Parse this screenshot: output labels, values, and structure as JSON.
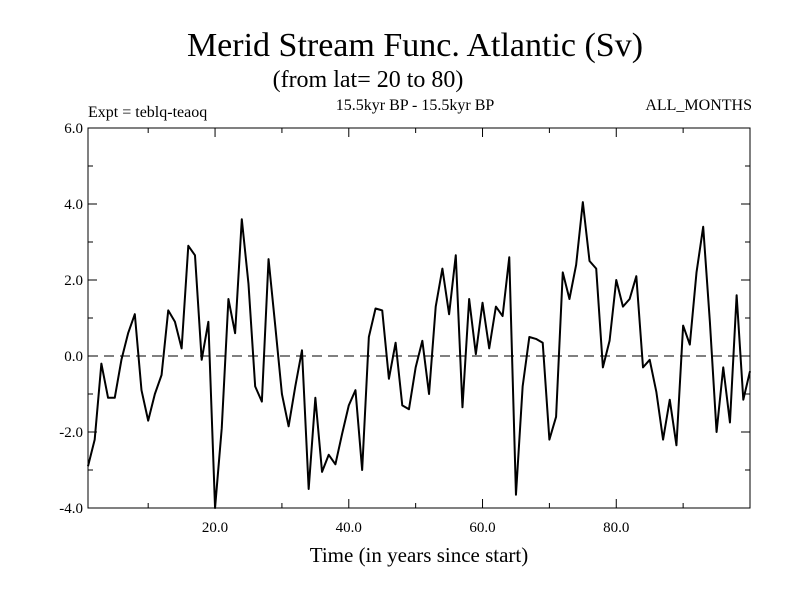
{
  "chart_data": {
    "type": "line",
    "title": "Merid Stream Func. Atlantic (Sv)",
    "subtitle": "(from lat= 20 to 80)",
    "period": "15.5kyr BP - 15.5kyr BP",
    "experiment": "Expt = teblq-teaoq",
    "months": "ALL_MONTHS",
    "xlabel": "Time (in years since start)",
    "ylabel": "",
    "xlim": [
      1,
      100
    ],
    "ylim": [
      -4.0,
      6.0
    ],
    "x_ticks": [
      20,
      40,
      60,
      80
    ],
    "x_tick_labels": [
      "20.0",
      "40.0",
      "60.0",
      "80.0"
    ],
    "y_ticks": [
      -4,
      -2,
      0,
      2,
      4,
      6
    ],
    "y_tick_labels": [
      "-4.0",
      "-2.0",
      "0.0",
      "2.0",
      "4.0",
      "6.0"
    ],
    "reference_line": 0.0,
    "x": [
      1,
      2,
      3,
      4,
      5,
      6,
      7,
      8,
      9,
      10,
      11,
      12,
      13,
      14,
      15,
      16,
      17,
      18,
      19,
      20,
      21,
      22,
      23,
      24,
      25,
      26,
      27,
      28,
      29,
      30,
      31,
      32,
      33,
      34,
      35,
      36,
      37,
      38,
      39,
      40,
      41,
      42,
      43,
      44,
      45,
      46,
      47,
      48,
      49,
      50,
      51,
      52,
      53,
      54,
      55,
      56,
      57,
      58,
      59,
      60,
      61,
      62,
      63,
      64,
      65,
      66,
      67,
      68,
      69,
      70,
      71,
      72,
      73,
      74,
      75,
      76,
      77,
      78,
      79,
      80,
      81,
      82,
      83,
      84,
      85,
      86,
      87,
      88,
      89,
      90,
      91,
      92,
      93,
      94,
      95,
      96,
      97,
      98,
      99,
      100
    ],
    "values": [
      -2.9,
      -2.2,
      -0.2,
      -1.1,
      -1.1,
      -0.1,
      0.6,
      1.1,
      -0.9,
      -1.7,
      -1.0,
      -0.5,
      1.2,
      0.9,
      0.2,
      2.9,
      2.65,
      -0.1,
      0.9,
      -4.0,
      -1.9,
      1.5,
      0.6,
      3.6,
      1.9,
      -0.8,
      -1.2,
      2.55,
      0.8,
      -1.0,
      -1.85,
      -0.8,
      0.15,
      -3.5,
      -1.1,
      -3.05,
      -2.6,
      -2.85,
      -2.05,
      -1.3,
      -0.9,
      -3.0,
      0.5,
      1.25,
      1.2,
      -0.6,
      0.35,
      -1.3,
      -1.4,
      -0.3,
      0.4,
      -1.0,
      1.3,
      2.3,
      1.1,
      2.65,
      -1.35,
      1.5,
      0.05,
      1.4,
      0.2,
      1.3,
      1.05,
      2.6,
      -3.65,
      -0.8,
      0.5,
      0.45,
      0.35,
      -2.2,
      -1.6,
      2.2,
      1.5,
      2.4,
      4.05,
      2.5,
      2.3,
      -0.3,
      0.4,
      2.0,
      1.3,
      1.5,
      2.1,
      -0.3,
      -0.1,
      -0.95,
      -2.2,
      -1.15,
      -2.35,
      0.8,
      0.3,
      2.2,
      3.4,
      0.9,
      -2.0,
      -0.3,
      -1.75,
      1.6,
      -1.15,
      -0.4
    ]
  }
}
